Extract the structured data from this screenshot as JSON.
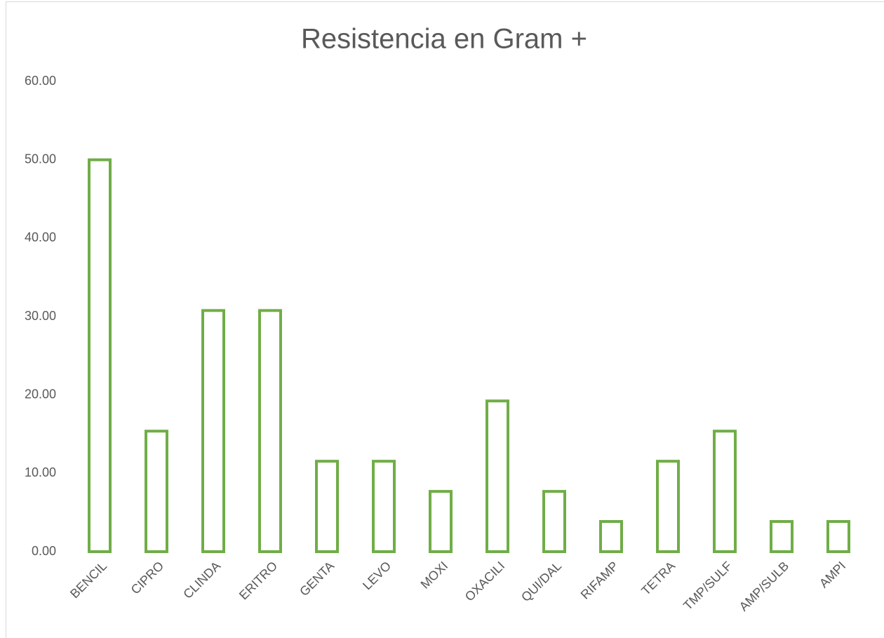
{
  "chart_data": {
    "type": "bar",
    "title": "Resistencia en Gram +",
    "categories": [
      "BENCIL",
      "CIPRO",
      "CLINDA",
      "ERITRO",
      "GENTA",
      "LEVO",
      "MOXI",
      "OXACILI",
      "QUI/DAL",
      "RIFAMP",
      "TETRA",
      "TMP/SULF",
      "AMP/SULB",
      "AMPI"
    ],
    "values": [
      50,
      15.38,
      30.77,
      30.77,
      11.54,
      11.54,
      7.69,
      19.23,
      7.69,
      3.85,
      11.54,
      15.38,
      3.85,
      3.85
    ],
    "color": "#70ad47",
    "ylim": [
      0,
      60
    ],
    "yticks": [
      {
        "value": 0,
        "label": "0.00"
      },
      {
        "value": 10,
        "label": "10.00"
      },
      {
        "value": 20,
        "label": "20.00"
      },
      {
        "value": 30,
        "label": "30.00"
      },
      {
        "value": 40,
        "label": "40.00"
      },
      {
        "value": 50,
        "label": "50.00"
      },
      {
        "value": 60,
        "label": "60.00"
      }
    ],
    "grid": false
  }
}
